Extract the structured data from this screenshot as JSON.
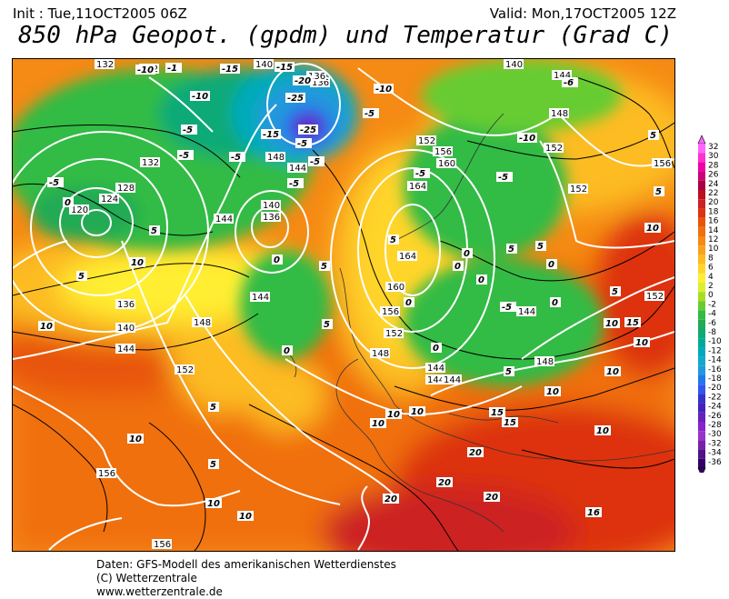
{
  "header": {
    "init": "Init : Tue,11OCT2005 06Z",
    "valid": "Valid: Mon,17OCT2005 12Z",
    "title": "850 hPa Geopot. (gpdm) und Temperatur (Grad C)"
  },
  "footer": {
    "line1": "Daten: GFS-Modell des amerikanischen Wetterdienstes",
    "line2": "(C) Wetterzentrale",
    "line3": "www.wetterzentrale.de"
  },
  "legend": {
    "labels": [
      "32",
      "30",
      "28",
      "26",
      "24",
      "22",
      "20",
      "18",
      "16",
      "14",
      "12",
      "10",
      "8",
      "6",
      "4",
      "2",
      "0",
      "-2",
      "-4",
      "-6",
      "-8",
      "-10",
      "-12",
      "-14",
      "-16",
      "-18",
      "-20",
      "-22",
      "-24",
      "-26",
      "-28",
      "-30",
      "-32",
      "-34",
      "-36"
    ],
    "colors": [
      "#ff66ff",
      "#ff33cc",
      "#ee00aa",
      "#cc0077",
      "#a8003e",
      "#bb1020",
      "#cc2222",
      "#dd3311",
      "#e85508",
      "#f07010",
      "#f58a14",
      "#f9a21e",
      "#fcbc22",
      "#ffd52a",
      "#ffee33",
      "#ddee33",
      "#aadd22",
      "#66cc33",
      "#33bb44",
      "#22aa55",
      "#11aa77",
      "#00aa99",
      "#00aabb",
      "#11aacc",
      "#2299dd",
      "#2277ee",
      "#3355ee",
      "#3333cc",
      "#4422bb",
      "#6622bb",
      "#8822cc",
      "#9933cc",
      "#7722aa",
      "#551188",
      "#330066"
    ]
  },
  "map": {
    "geopotential_labels": [
      "132",
      "132",
      "140",
      "136",
      "120",
      "124",
      "128",
      "132",
      "136",
      "140",
      "144",
      "148",
      "152",
      "156",
      "156",
      "144",
      "140",
      "136",
      "144",
      "148",
      "144",
      "152",
      "156",
      "160",
      "164",
      "164",
      "160",
      "156",
      "152",
      "148",
      "144",
      "144",
      "144",
      "148",
      "152",
      "156",
      "152",
      "140",
      "144",
      "152",
      "144",
      "148",
      "136"
    ],
    "temperature_labels": [
      "-10",
      "-1",
      "-15",
      "-15",
      "-20",
      "-25",
      "-25",
      "-10",
      "-5",
      "-5",
      "-5",
      "-15",
      "-10",
      "-5",
      "-10",
      "-5",
      "-6",
      "-5",
      "-5",
      "0",
      "5",
      "10",
      "10",
      "5",
      "0",
      "5",
      "0",
      "-5",
      "0",
      "0",
      "5",
      "5",
      "10",
      "10",
      "10",
      "15",
      "15",
      "10",
      "5",
      "0",
      "5",
      "0",
      "0",
      "5",
      "10",
      "5",
      "10",
      "10",
      "15",
      "10",
      "20",
      "20",
      "20",
      "20",
      "16",
      "10",
      "10",
      "5",
      "5",
      "10",
      "10",
      "-5",
      "-5",
      "5",
      "0",
      "-5",
      "5",
      "0"
    ]
  }
}
